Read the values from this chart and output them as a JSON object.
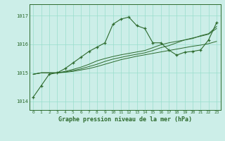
{
  "title": "Graphe pression niveau de la mer (hPa)",
  "background_color": "#cceee8",
  "grid_color": "#99ddcc",
  "line_color": "#2d6a2d",
  "x_labels": [
    "0",
    "1",
    "2",
    "3",
    "4",
    "5",
    "6",
    "7",
    "8",
    "9",
    "10",
    "11",
    "12",
    "13",
    "14",
    "15",
    "16",
    "17",
    "18",
    "19",
    "20",
    "21",
    "22",
    "23"
  ],
  "ylim": [
    1013.7,
    1017.4
  ],
  "yticks": [
    1014,
    1015,
    1016,
    1017
  ],
  "series1": [
    1014.15,
    1014.55,
    1014.95,
    1015.0,
    1015.15,
    1015.35,
    1015.55,
    1015.75,
    1015.9,
    1016.05,
    1016.7,
    1016.88,
    1016.95,
    1016.65,
    1016.55,
    1016.05,
    1016.05,
    1015.8,
    1015.62,
    1015.72,
    1015.75,
    1015.8,
    1016.15,
    1016.75
  ],
  "series2": [
    1014.95,
    1015.0,
    1015.0,
    1015.0,
    1015.02,
    1015.05,
    1015.1,
    1015.15,
    1015.22,
    1015.3,
    1015.38,
    1015.46,
    1015.52,
    1015.58,
    1015.63,
    1015.68,
    1015.73,
    1015.78,
    1015.83,
    1015.88,
    1015.93,
    1015.97,
    1016.02,
    1016.1
  ],
  "series3": [
    1014.95,
    1015.0,
    1015.0,
    1015.0,
    1015.05,
    1015.12,
    1015.2,
    1015.3,
    1015.42,
    1015.5,
    1015.57,
    1015.63,
    1015.68,
    1015.73,
    1015.78,
    1015.88,
    1015.98,
    1016.05,
    1016.1,
    1016.15,
    1016.22,
    1016.28,
    1016.35,
    1016.55
  ],
  "series4": [
    1014.95,
    1015.0,
    1015.0,
    1015.0,
    1015.03,
    1015.08,
    1015.14,
    1015.22,
    1015.3,
    1015.4,
    1015.48,
    1015.54,
    1015.6,
    1015.65,
    1015.7,
    1015.78,
    1015.88,
    1015.95,
    1016.05,
    1016.15,
    1016.2,
    1016.3,
    1016.37,
    1016.62
  ]
}
